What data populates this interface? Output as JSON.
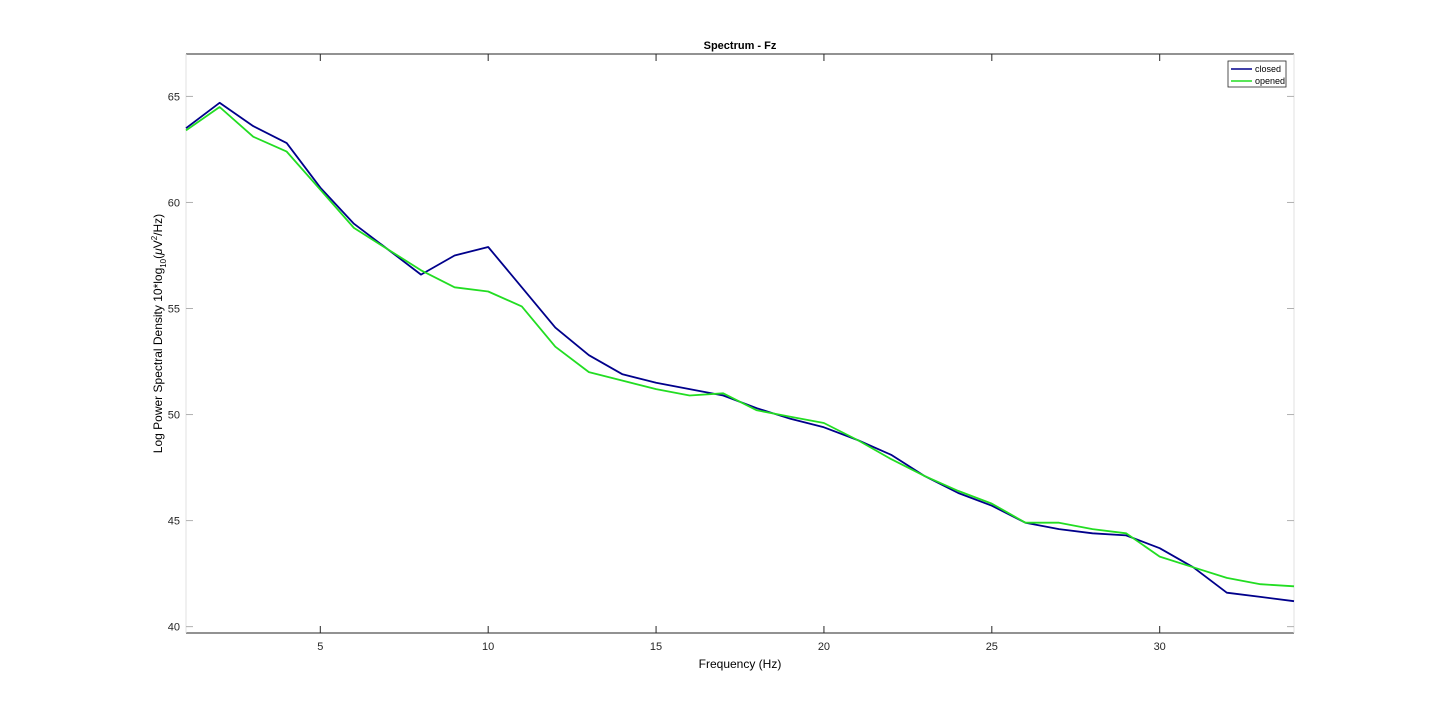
{
  "chart_data": {
    "type": "line",
    "title": "Spectrum - Fz",
    "xlabel": "Frequency (Hz)",
    "ylabel": {
      "prefix": "Log Power Spectral Density 10*log",
      "subscript": "10",
      "mid": "(",
      "mu": "μ",
      "unit": "V",
      "superscript": "2",
      "suffix": "/Hz)"
    },
    "xlim": [
      1,
      34
    ],
    "ylim": [
      39.7,
      67
    ],
    "xticks": [
      5,
      10,
      15,
      20,
      25,
      30
    ],
    "yticks": [
      40,
      45,
      50,
      55,
      60,
      65
    ],
    "grid": false,
    "box": true,
    "legend_position": "top-right",
    "series": [
      {
        "name": "closed",
        "color": "#00008B",
        "x": [
          1,
          2,
          3,
          4,
          5,
          6,
          7,
          8,
          9,
          10,
          11,
          12,
          13,
          14,
          15,
          16,
          17,
          18,
          19,
          20,
          21,
          22,
          23,
          24,
          25,
          26,
          27,
          28,
          29,
          30,
          31,
          32,
          33,
          34
        ],
        "y": [
          63.5,
          64.7,
          63.6,
          62.8,
          60.7,
          59.0,
          57.8,
          56.6,
          57.5,
          57.9,
          56.0,
          54.1,
          52.8,
          51.9,
          51.5,
          51.2,
          50.9,
          50.3,
          49.8,
          49.4,
          48.8,
          48.1,
          47.1,
          46.3,
          45.7,
          44.9,
          44.6,
          44.4,
          44.3,
          43.7,
          42.8,
          41.6,
          41.4,
          41.2
        ]
      },
      {
        "name": "opened",
        "color": "#22DD22",
        "x": [
          1,
          2,
          3,
          4,
          5,
          6,
          7,
          8,
          9,
          10,
          11,
          12,
          13,
          14,
          15,
          16,
          17,
          18,
          19,
          20,
          21,
          22,
          23,
          24,
          25,
          26,
          27,
          28,
          29,
          30,
          31,
          32,
          33,
          34
        ],
        "y": [
          63.4,
          64.5,
          63.1,
          62.4,
          60.6,
          58.8,
          57.8,
          56.8,
          56.0,
          55.8,
          55.1,
          53.2,
          52.0,
          51.6,
          51.2,
          50.9,
          51.0,
          50.2,
          49.9,
          49.6,
          48.8,
          47.9,
          47.1,
          46.4,
          45.8,
          44.9,
          44.9,
          44.6,
          44.4,
          43.3,
          42.8,
          42.3,
          42.0,
          41.9
        ]
      }
    ]
  }
}
